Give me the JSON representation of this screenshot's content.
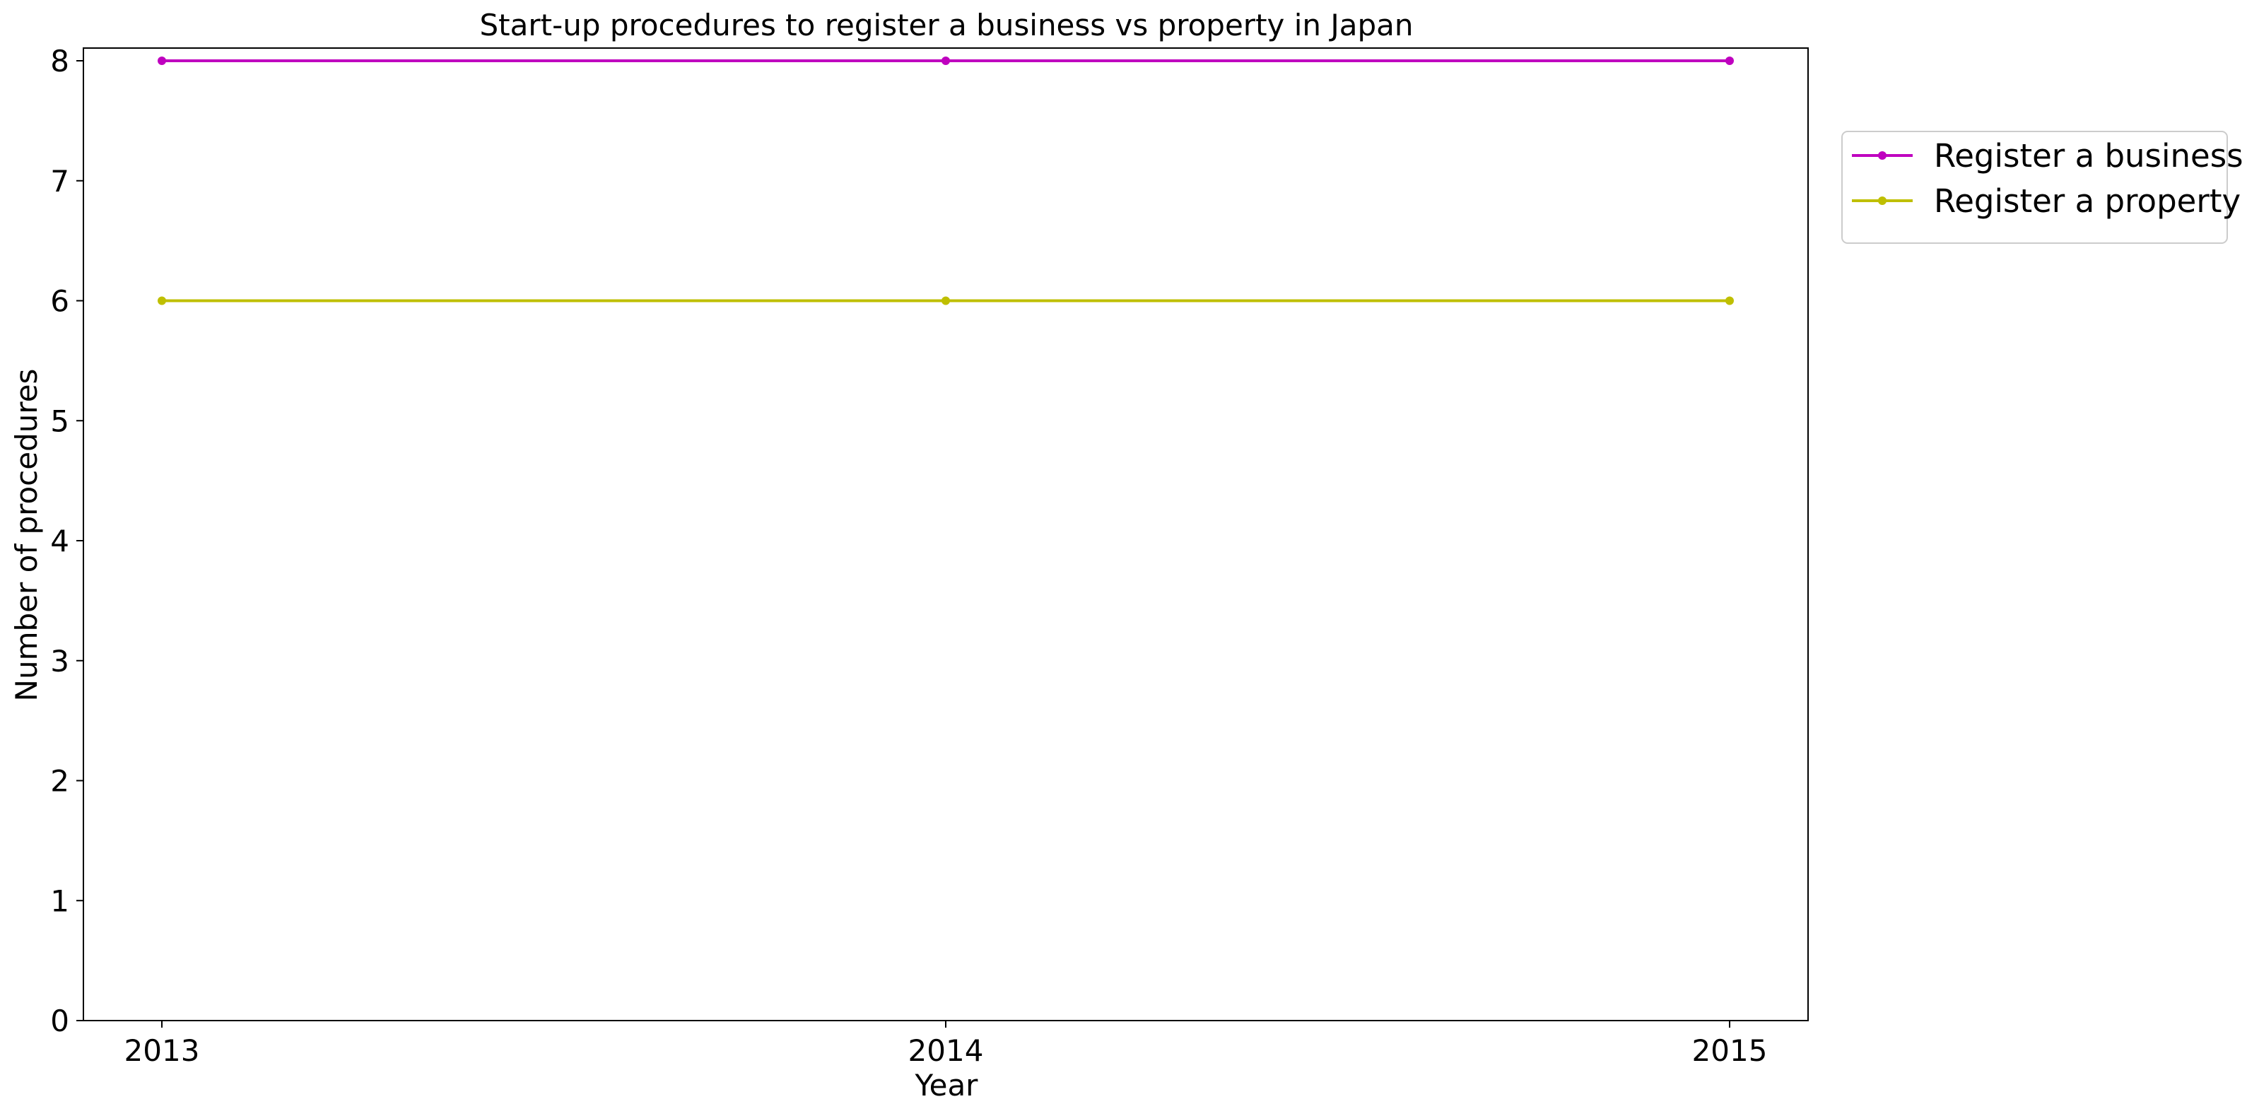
{
  "chart_data": {
    "type": "line",
    "title": "Start-up procedures to register a business vs property in Japan",
    "xlabel": "Year",
    "ylabel": "Number of procedures",
    "x": [
      "2013",
      "2014",
      "2015"
    ],
    "ylim": [
      0,
      8
    ],
    "yticks": [
      "0",
      "1",
      "2",
      "3",
      "4",
      "5",
      "6",
      "7",
      "8"
    ],
    "grid": false,
    "legend_position": "upper right, outside plot",
    "series": [
      {
        "name": "Register a business",
        "values": [
          8,
          8,
          8
        ],
        "color": "#bf00bf"
      },
      {
        "name": "Register a property",
        "values": [
          6,
          6,
          6
        ],
        "color": "#bfbf00"
      }
    ]
  }
}
